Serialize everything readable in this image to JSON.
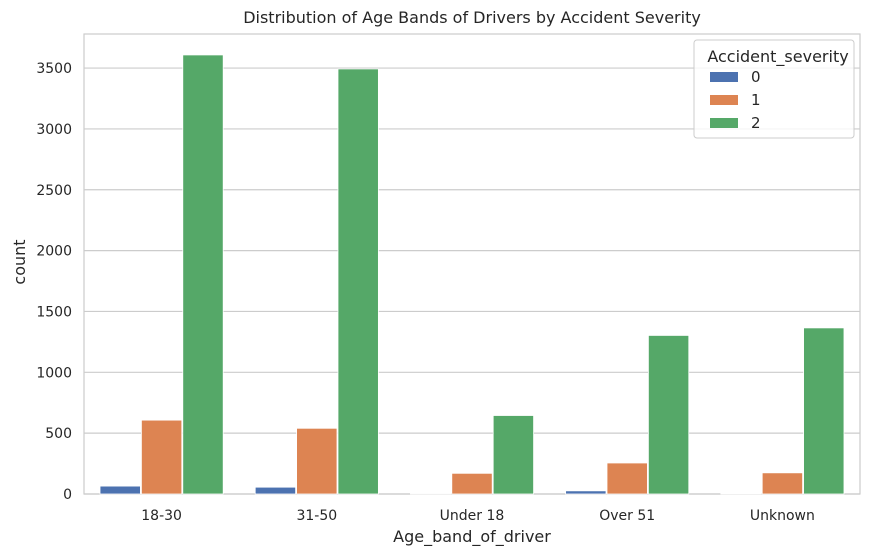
{
  "chart_data": {
    "type": "bar",
    "title": "Distribution of Age Bands of Drivers by Accident Severity",
    "xlabel": "Age_band_of_driver",
    "ylabel": "count",
    "categories": [
      "18-30",
      "31-50",
      "Under 18",
      "Over 51",
      "Unknown"
    ],
    "ylim": [
      0,
      3780
    ],
    "yticks": [
      0,
      500,
      1000,
      1500,
      2000,
      2500,
      3000,
      3500
    ],
    "ytick_labels": [
      "0",
      "500",
      "1000",
      "1500",
      "2000",
      "2500",
      "3000",
      "3500"
    ],
    "grid": true,
    "legend": {
      "title": "Accident_severity",
      "placement": "top-right"
    },
    "series": [
      {
        "name": "0",
        "color": "#4c72b0",
        "values": [
          65,
          56,
          4,
          26,
          5
        ]
      },
      {
        "name": "1",
        "color": "#dd8452",
        "values": [
          607,
          540,
          170,
          255,
          174
        ]
      },
      {
        "name": "2",
        "color": "#55a868",
        "values": [
          3608,
          3493,
          645,
          1303,
          1365
        ]
      }
    ]
  }
}
